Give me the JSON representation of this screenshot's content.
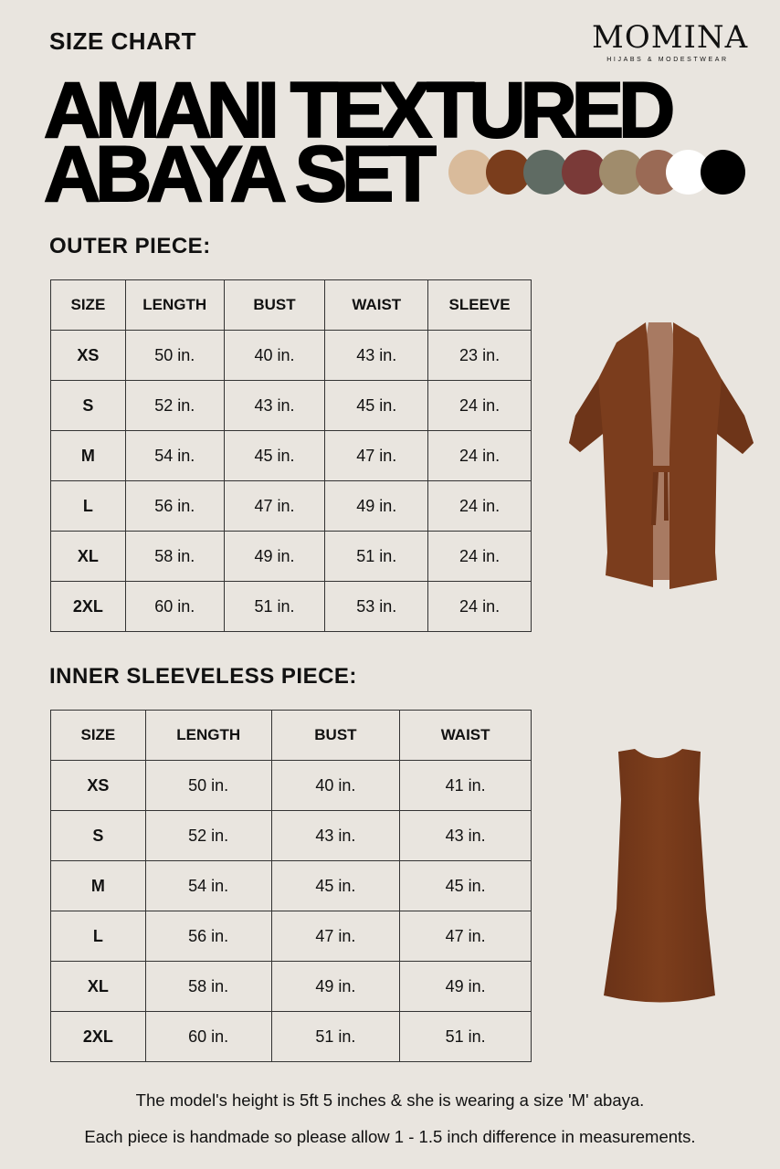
{
  "header": {
    "kicker": "SIZE CHART",
    "title_line1": "AMANI TEXTURED",
    "title_line2": "ABAYA SET"
  },
  "logo": {
    "wordmark": "MOMINA",
    "tagline": "HIJABS & MODESTWEAR"
  },
  "color_swatches": [
    "#d9bb9b",
    "#7a3d1c",
    "#5f6b63",
    "#7a3a38",
    "#a08c6c",
    "#9a6a55",
    "#ffffff",
    "#000000"
  ],
  "outer": {
    "heading": "OUTER PIECE:",
    "columns": [
      "SIZE",
      "LENGTH",
      "BUST",
      "WAIST",
      "SLEEVE"
    ],
    "rows": [
      [
        "XS",
        "50 in.",
        "40 in.",
        "43 in.",
        "23 in."
      ],
      [
        "S",
        "52 in.",
        "43 in.",
        "45 in.",
        "24 in."
      ],
      [
        "M",
        "54 in.",
        "45 in.",
        "47 in.",
        "24 in."
      ],
      [
        "L",
        "56 in.",
        "47 in.",
        "49 in.",
        "24 in."
      ],
      [
        "XL",
        "58 in.",
        "49 in.",
        "51 in.",
        "24 in."
      ],
      [
        "2XL",
        "60 in.",
        "51 in.",
        "53 in.",
        "24 in."
      ]
    ]
  },
  "inner": {
    "heading": "INNER SLEEVELESS PIECE:",
    "columns": [
      "SIZE",
      "LENGTH",
      "BUST",
      "WAIST"
    ],
    "rows": [
      [
        "XS",
        "50 in.",
        "40 in.",
        "41 in."
      ],
      [
        "S",
        "52 in.",
        "43 in.",
        "43 in."
      ],
      [
        "M",
        "54 in.",
        "45 in.",
        "45 in."
      ],
      [
        "L",
        "56 in.",
        "47 in.",
        "47 in."
      ],
      [
        "XL",
        "58 in.",
        "49 in.",
        "49 in."
      ],
      [
        "2XL",
        "60 in.",
        "51 in.",
        "51 in."
      ]
    ]
  },
  "notes": [
    "The model's height is 5ft 5 inches & she is wearing a size 'M' abaya.",
    "Each piece is handmade so please allow 1 - 1.5 inch difference in measurements."
  ]
}
